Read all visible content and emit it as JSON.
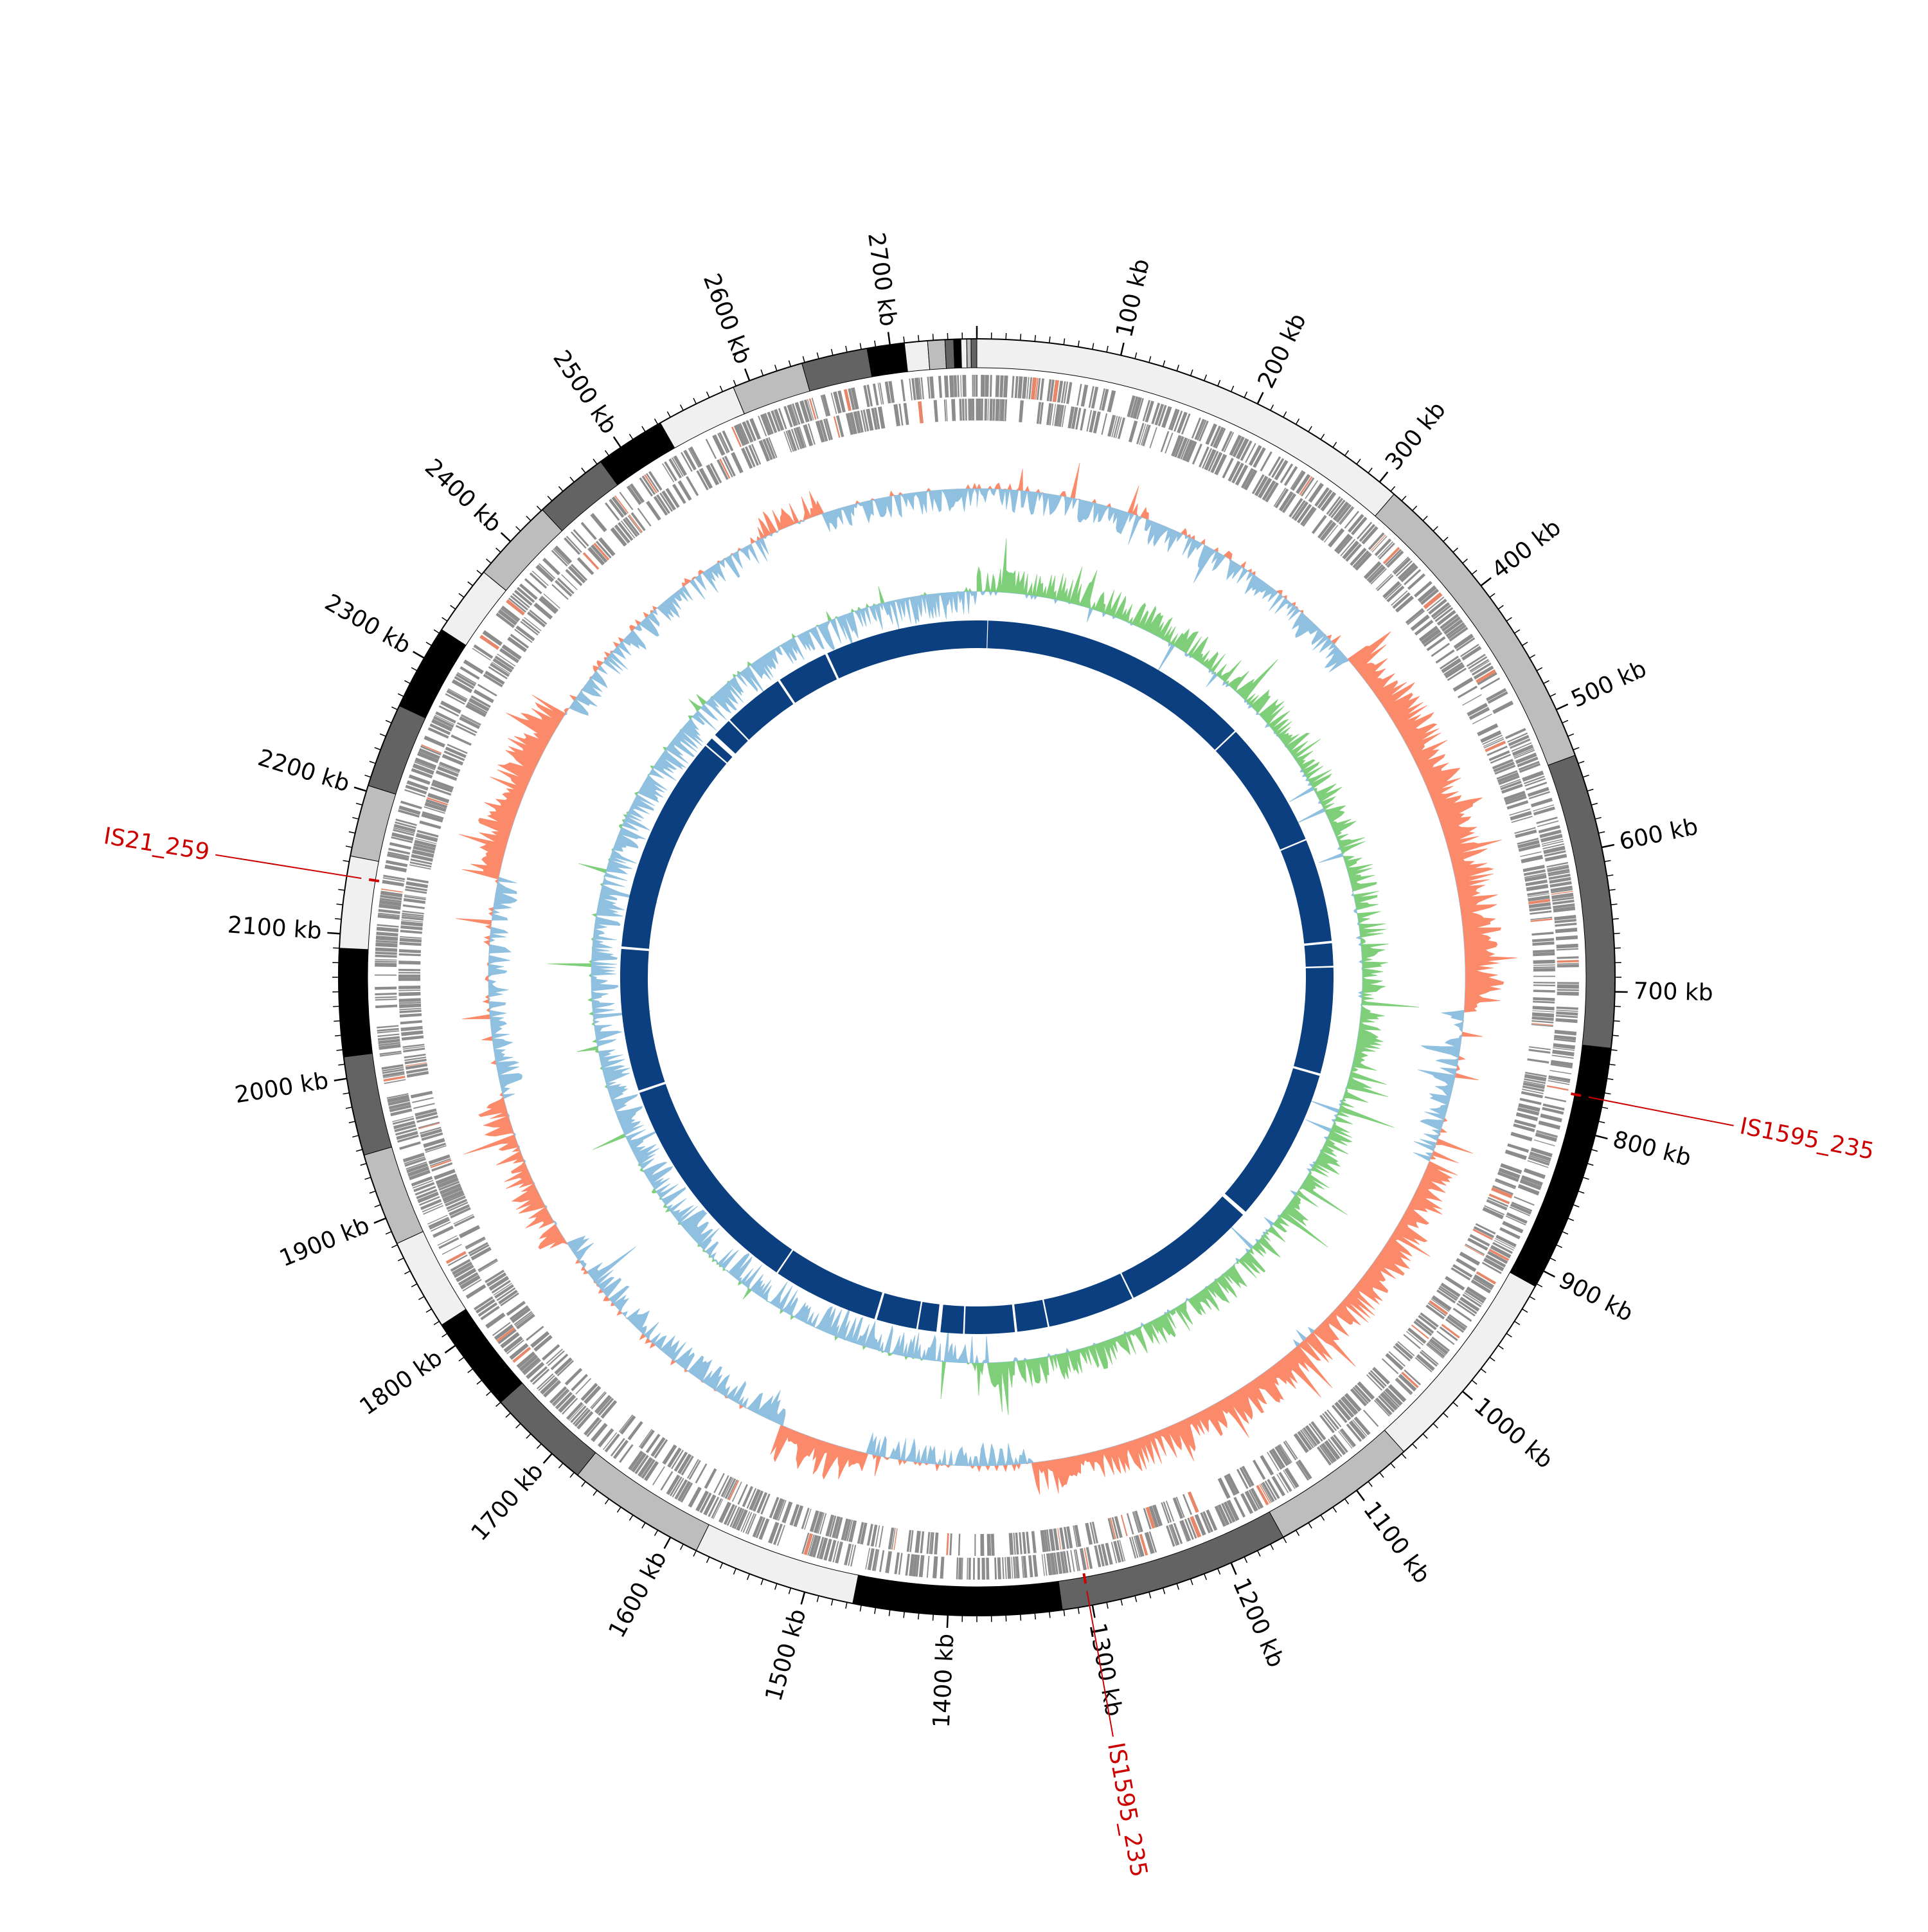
{
  "genome": {
    "length_kb": 2760,
    "tick_labels": [
      {
        "kb": 100,
        "text": "100 kb"
      },
      {
        "kb": 200,
        "text": "200 kb"
      },
      {
        "kb": 300,
        "text": "300 kb"
      },
      {
        "kb": 400,
        "text": "400 kb"
      },
      {
        "kb": 500,
        "text": "500 kb"
      },
      {
        "kb": 600,
        "text": "600 kb"
      },
      {
        "kb": 700,
        "text": "700 kb"
      },
      {
        "kb": 800,
        "text": "800 kb"
      },
      {
        "kb": 900,
        "text": "900 kb"
      },
      {
        "kb": 1000,
        "text": "1000 kb"
      },
      {
        "kb": 1100,
        "text": "1100 kb"
      },
      {
        "kb": 1200,
        "text": "1200 kb"
      },
      {
        "kb": 1300,
        "text": "1300 kb"
      },
      {
        "kb": 1400,
        "text": "1400 kb"
      },
      {
        "kb": 1500,
        "text": "1500 kb"
      },
      {
        "kb": 1600,
        "text": "1600 kb"
      },
      {
        "kb": 1700,
        "text": "1700 kb"
      },
      {
        "kb": 1800,
        "text": "1800 kb"
      },
      {
        "kb": 1900,
        "text": "1900 kb"
      },
      {
        "kb": 2000,
        "text": "2000 kb"
      },
      {
        "kb": 2100,
        "text": "2100 kb"
      },
      {
        "kb": 2200,
        "text": "2200 kb"
      },
      {
        "kb": 2300,
        "text": "2300 kb"
      },
      {
        "kb": 2400,
        "text": "2400 kb"
      },
      {
        "kb": 2500,
        "text": "2500 kb"
      },
      {
        "kb": 2600,
        "text": "2600 kb"
      },
      {
        "kb": 2700,
        "text": "2700 kb"
      }
    ]
  },
  "contig_blocks": [
    {
      "start": 0,
      "end": 313,
      "shade": "#f0f0f0"
    },
    {
      "start": 313,
      "end": 534,
      "shade": "#bdbdbd"
    },
    {
      "start": 534,
      "end": 739,
      "shade": "#636363"
    },
    {
      "start": 739,
      "end": 912,
      "shade": "#000000"
    },
    {
      "start": 912,
      "end": 1058,
      "shade": "#f0f0f0"
    },
    {
      "start": 1058,
      "end": 1160,
      "shade": "#bdbdbd"
    },
    {
      "start": 1160,
      "end": 1321,
      "shade": "#636363"
    },
    {
      "start": 1321,
      "end": 1466,
      "shade": "#000000"
    },
    {
      "start": 1466,
      "end": 1580,
      "shade": "#f0f0f0"
    },
    {
      "start": 1580,
      "end": 1677,
      "shade": "#bdbdbd"
    },
    {
      "start": 1677,
      "end": 1750,
      "shade": "#636363"
    },
    {
      "start": 1750,
      "end": 1817,
      "shade": "#000000"
    },
    {
      "start": 1817,
      "end": 1881,
      "shade": "#f0f0f0"
    },
    {
      "start": 1881,
      "end": 1946,
      "shade": "#bdbdbd"
    },
    {
      "start": 1946,
      "end": 2015,
      "shade": "#636363"
    },
    {
      "start": 2015,
      "end": 2090,
      "shade": "#000000"
    },
    {
      "start": 2090,
      "end": 2154,
      "shade": "#f0f0f0"
    },
    {
      "start": 2154,
      "end": 2204,
      "shade": "#bdbdbd"
    },
    {
      "start": 2204,
      "end": 2263,
      "shade": "#636363"
    },
    {
      "start": 2263,
      "end": 2323,
      "shade": "#000000"
    },
    {
      "start": 2323,
      "end": 2372,
      "shade": "#f0f0f0"
    },
    {
      "start": 2372,
      "end": 2431,
      "shade": "#bdbdbd"
    },
    {
      "start": 2431,
      "end": 2483,
      "shade": "#636363"
    },
    {
      "start": 2483,
      "end": 2532,
      "shade": "#000000"
    },
    {
      "start": 2532,
      "end": 2588,
      "shade": "#f0f0f0"
    },
    {
      "start": 2588,
      "end": 2638,
      "shade": "#bdbdbd"
    },
    {
      "start": 2638,
      "end": 2684,
      "shade": "#636363"
    },
    {
      "start": 2684,
      "end": 2710,
      "shade": "#000000"
    },
    {
      "start": 2710,
      "end": 2726,
      "shade": "#f0f0f0"
    },
    {
      "start": 2726,
      "end": 2738,
      "shade": "#bdbdbd"
    },
    {
      "start": 2738,
      "end": 2744,
      "shade": "#636363"
    },
    {
      "start": 2744,
      "end": 2749,
      "shade": "#000000"
    },
    {
      "start": 2749,
      "end": 2753,
      "shade": "#f0f0f0"
    },
    {
      "start": 2753,
      "end": 2756,
      "shade": "#bdbdbd"
    },
    {
      "start": 2756,
      "end": 2760,
      "shade": "#636363"
    }
  ],
  "is_elements": [
    {
      "name": "IS1595_235",
      "kb": 775,
      "color": "#cc0000"
    },
    {
      "name": "IS1595_235",
      "kb": 1302,
      "color": "#cc0000"
    },
    {
      "name": "IS21_259",
      "kb": 2140,
      "color": "#cc0000"
    }
  ],
  "tracks": {
    "gene_color": "#8c8c8c",
    "gene_highlight_color": "#e8866a",
    "gc_positive_color": "#fb8a6a",
    "gc_negative_color": "#8fc0e0",
    "skew_positive_color": "#7fcf7a",
    "skew_negative_color": "#8fc0e0",
    "alignment_color": "#0b3f80",
    "alignment_segments": [
      [
        0,
        13
      ],
      [
        14,
        355
      ],
      [
        357,
        515
      ],
      [
        517,
        645
      ],
      [
        648,
        676
      ],
      [
        678,
        810
      ],
      [
        813,
        1005
      ],
      [
        1010,
        1180
      ],
      [
        1182,
        1290
      ],
      [
        1292,
        1330
      ],
      [
        1333,
        1395
      ],
      [
        1397,
        1425
      ],
      [
        1430,
        1453
      ],
      [
        1455,
        1505
      ],
      [
        1508,
        1640
      ],
      [
        1642,
        1925
      ],
      [
        1928,
        2105
      ],
      [
        2108,
        2380
      ],
      [
        2382,
        2392
      ],
      [
        2398,
        2422
      ],
      [
        2424,
        2500
      ],
      [
        2503,
        2567
      ],
      [
        2570,
        2760
      ]
    ]
  }
}
